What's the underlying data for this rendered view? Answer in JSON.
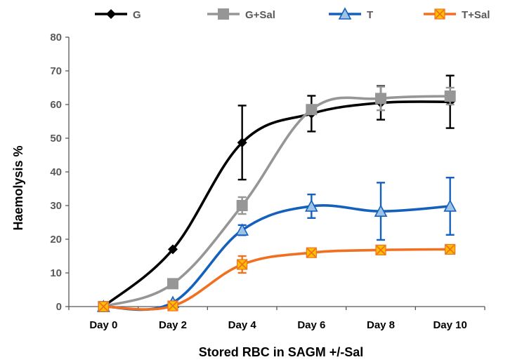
{
  "chart_data": {
    "type": "line",
    "title": "",
    "xlabel": "Stored RBC in SAGM +/-Sal",
    "ylabel": "Haemolysis %",
    "categories": [
      "Day 0",
      "Day 2",
      "Day 4",
      "Day 6",
      "Day 8",
      "Day 10"
    ],
    "ylim": [
      0,
      80
    ],
    "yticks": [
      0,
      10,
      20,
      30,
      40,
      50,
      60,
      70,
      80
    ],
    "grid": false,
    "legend": "top",
    "series": [
      {
        "name": "G",
        "color": "#000000",
        "marker": "diamond",
        "values": [
          0,
          17,
          48.7,
          57.3,
          60.5,
          60.8
        ],
        "errors": [
          0,
          0,
          11,
          5.3,
          5,
          7.8
        ]
      },
      {
        "name": "G+Sal",
        "color": "#969696",
        "marker": "square",
        "values": [
          0,
          6.8,
          30,
          58.5,
          61.8,
          62.5
        ],
        "errors": [
          0,
          0,
          2.5,
          1,
          3.5,
          2.5
        ]
      },
      {
        "name": "T",
        "color": "#1560bd",
        "marker": "triangle",
        "values": [
          0,
          1.2,
          22.7,
          29.8,
          28.3,
          29.8
        ],
        "errors": [
          0,
          0,
          1.5,
          3.5,
          8.5,
          8.5
        ]
      },
      {
        "name": "T+Sal",
        "color": "#f07020",
        "marker": "xbox",
        "values": [
          0,
          0.2,
          12.5,
          16,
          16.8,
          17
        ],
        "errors": [
          0,
          0,
          2.5,
          0,
          0,
          0
        ]
      }
    ]
  }
}
